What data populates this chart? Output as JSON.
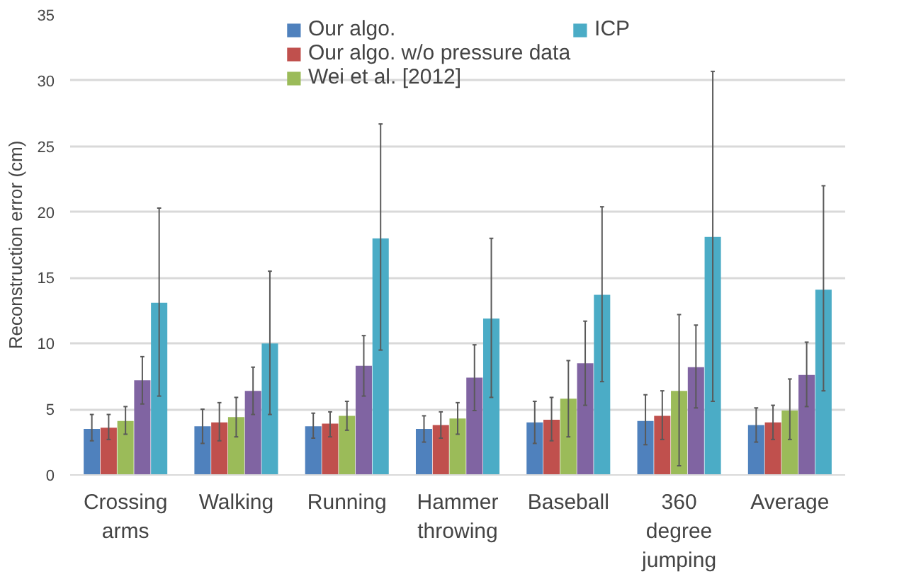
{
  "chart_data": {
    "type": "bar",
    "ylabel": "Reconstruction error (cm)",
    "categories": [
      "Crossing arms",
      "Walking",
      "Running",
      "Hammer throwing",
      "Baseball",
      "360 degree jumping",
      "Average"
    ],
    "series": [
      {
        "name": "Our algo.",
        "color": "#4f81bd",
        "values": [
          3.5,
          3.7,
          3.7,
          3.5,
          4.0,
          4.1,
          3.8
        ],
        "errors": [
          [
            2.6,
            4.6
          ],
          [
            2.4,
            5.0
          ],
          [
            2.8,
            4.7
          ],
          [
            2.5,
            4.5
          ],
          [
            2.4,
            5.6
          ],
          [
            2.3,
            6.1
          ],
          [
            2.5,
            5.1
          ]
        ]
      },
      {
        "name": "Our algo. w/o pressure data",
        "color": "#c0504d",
        "values": [
          3.6,
          4.0,
          3.9,
          3.8,
          4.2,
          4.5,
          4.0
        ],
        "errors": [
          [
            2.7,
            4.6
          ],
          [
            2.6,
            5.5
          ],
          [
            2.9,
            4.8
          ],
          [
            2.8,
            4.8
          ],
          [
            2.6,
            5.9
          ],
          [
            2.7,
            6.4
          ],
          [
            2.7,
            5.3
          ]
        ]
      },
      {
        "name": "Wei et al. [2012]",
        "color": "#9bbb59",
        "values": [
          4.1,
          4.4,
          4.5,
          4.3,
          5.8,
          6.4,
          4.9
        ],
        "errors": [
          [
            3.1,
            5.2
          ],
          [
            2.9,
            5.9
          ],
          [
            3.4,
            5.6
          ],
          [
            3.1,
            5.5
          ],
          [
            2.9,
            8.7
          ],
          [
            0.7,
            12.2
          ],
          [
            2.7,
            7.3
          ]
        ]
      },
      {
        "color": "#8064a2",
        "values": [
          7.2,
          6.4,
          8.3,
          7.4,
          8.5,
          8.2,
          7.6
        ],
        "errors": [
          [
            5.4,
            9.0
          ],
          [
            4.6,
            8.2
          ],
          [
            6.0,
            10.6
          ],
          [
            4.9,
            9.9
          ],
          [
            5.3,
            11.7
          ],
          [
            5.1,
            11.4
          ],
          [
            5.2,
            10.1
          ]
        ]
      },
      {
        "name": "ICP",
        "color": "#4bacc6",
        "values": [
          13.1,
          10.0,
          18.0,
          11.9,
          13.7,
          18.1,
          14.1
        ],
        "errors": [
          [
            6.0,
            20.3
          ],
          [
            4.6,
            15.5
          ],
          [
            9.5,
            26.7
          ],
          [
            5.9,
            18.0
          ],
          [
            7.1,
            20.4
          ],
          [
            5.6,
            30.7
          ],
          [
            6.4,
            22.0
          ]
        ]
      }
    ],
    "ylim": [
      0,
      35
    ],
    "yticks": [
      0,
      5,
      10,
      15,
      20,
      25,
      30,
      35
    ],
    "grid": "y",
    "legend": "top"
  }
}
